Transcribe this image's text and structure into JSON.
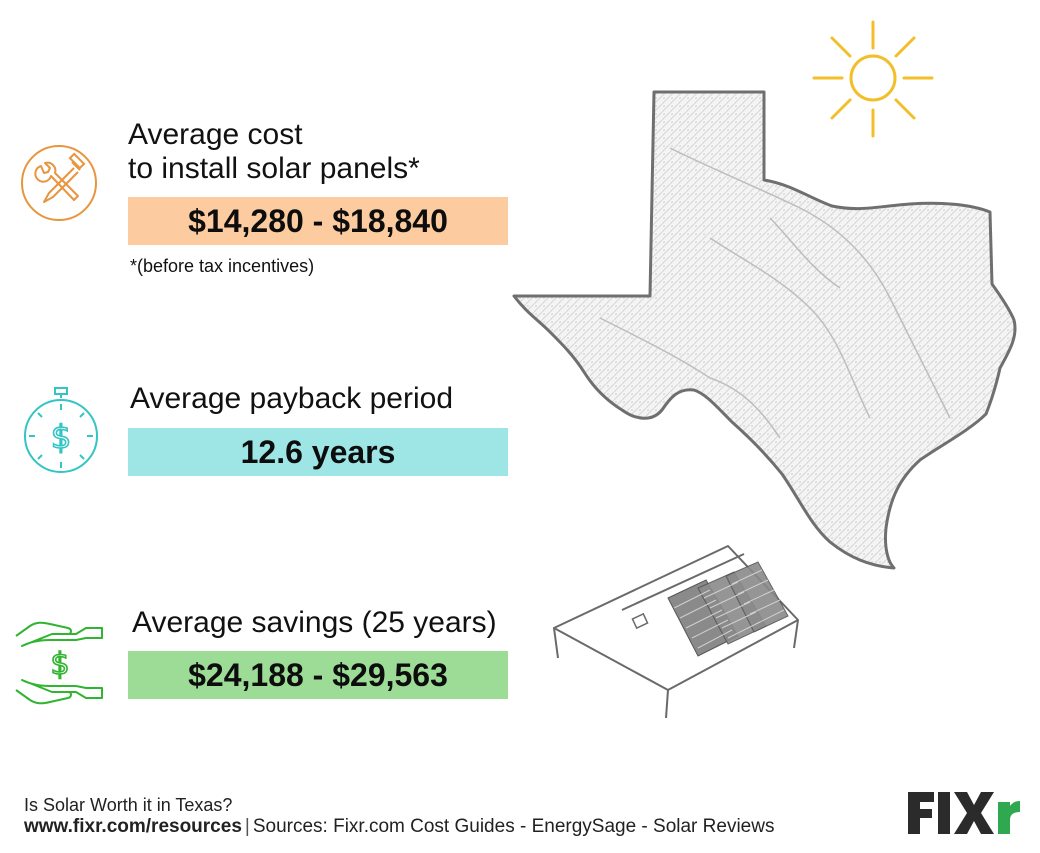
{
  "cost": {
    "heading_line1": "Average cost",
    "heading_line2": "to install solar panels*",
    "value": "$14,280 - $18,840",
    "footnote": "*(before tax incentives)",
    "box_color": "#fccca0",
    "icon": "wrench-screwdriver-icon",
    "icon_color": "#e8953e"
  },
  "payback": {
    "heading": "Average payback period",
    "value": "12.6 years",
    "box_color": "#9ee6e6",
    "icon": "stopwatch-dollar-icon",
    "icon_color": "#33c4c4"
  },
  "savings": {
    "heading": "Average savings (25 years)",
    "value": "$24,188 - $29,563",
    "box_color": "#9cdc96",
    "icon": "hands-dollar-icon",
    "icon_color": "#2fb52f"
  },
  "illustrations": {
    "sun": "sun-icon",
    "map": "texas-map",
    "roof": "solar-roof-icon"
  },
  "footer": {
    "title": "Is Solar Worth it in Texas?",
    "url": "www.fixr.com/resources",
    "separator": "|",
    "sources": "Sources: Fixr.com Cost Guides - EnergySage - Solar Reviews",
    "logo_text": "FIXr",
    "logo_accent": "#2fa84f"
  }
}
